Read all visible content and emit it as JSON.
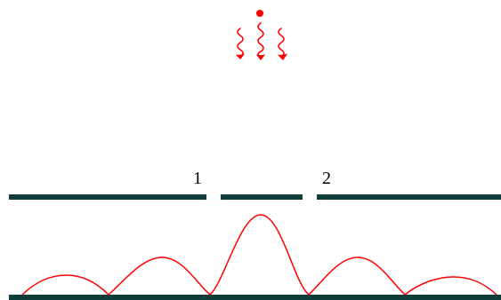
{
  "diagram": {
    "slit_labels": [
      "1",
      "2"
    ],
    "colors": {
      "source": "#ff0000",
      "waves": "#ff0000",
      "barrier": "#0f3d3a",
      "screen": "#0f3d3a",
      "pattern": "#ff0000",
      "label": "#000000"
    },
    "icons": {
      "source": "light-source-dot",
      "waves": "wavy-arrows-down"
    }
  }
}
